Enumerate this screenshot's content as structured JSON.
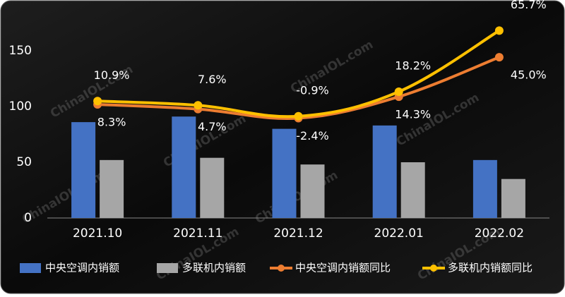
{
  "chart_data": {
    "type": "bar",
    "categories": [
      "2021.10",
      "2021.11",
      "2021.12",
      "2022.01",
      "2022.02"
    ],
    "series": [
      {
        "name": "中央空调内销额",
        "type": "bar",
        "color": "#4472c4",
        "values": [
          86,
          91,
          80,
          83,
          52
        ]
      },
      {
        "name": "多联机内销额",
        "type": "bar",
        "color": "#a6a6a6",
        "values": [
          52,
          54,
          48,
          50,
          35
        ]
      },
      {
        "name": "中央空调内销额同比",
        "type": "line",
        "axis": "y2",
        "color": "#ed7d31",
        "values": [
          8.3,
          4.7,
          -2.4,
          14.3,
          45.0
        ],
        "value_labels": [
          "8.3%",
          "4.7%",
          "-2.4%",
          "14.3%",
          "45.0%"
        ]
      },
      {
        "name": "多联机内销额同比",
        "type": "line",
        "axis": "y2",
        "color": "#ffc000",
        "values": [
          10.9,
          7.6,
          -0.9,
          18.2,
          65.7
        ],
        "value_labels": [
          "10.9%",
          "7.6%",
          "-0.9%",
          "18.2%",
          "65.7%"
        ]
      }
    ],
    "ylim": [
      0,
      150
    ],
    "yticks": [
      0,
      50,
      100,
      150
    ],
    "y2lim": [
      -80,
      50
    ],
    "watermark": "ChinaIOL.com"
  }
}
